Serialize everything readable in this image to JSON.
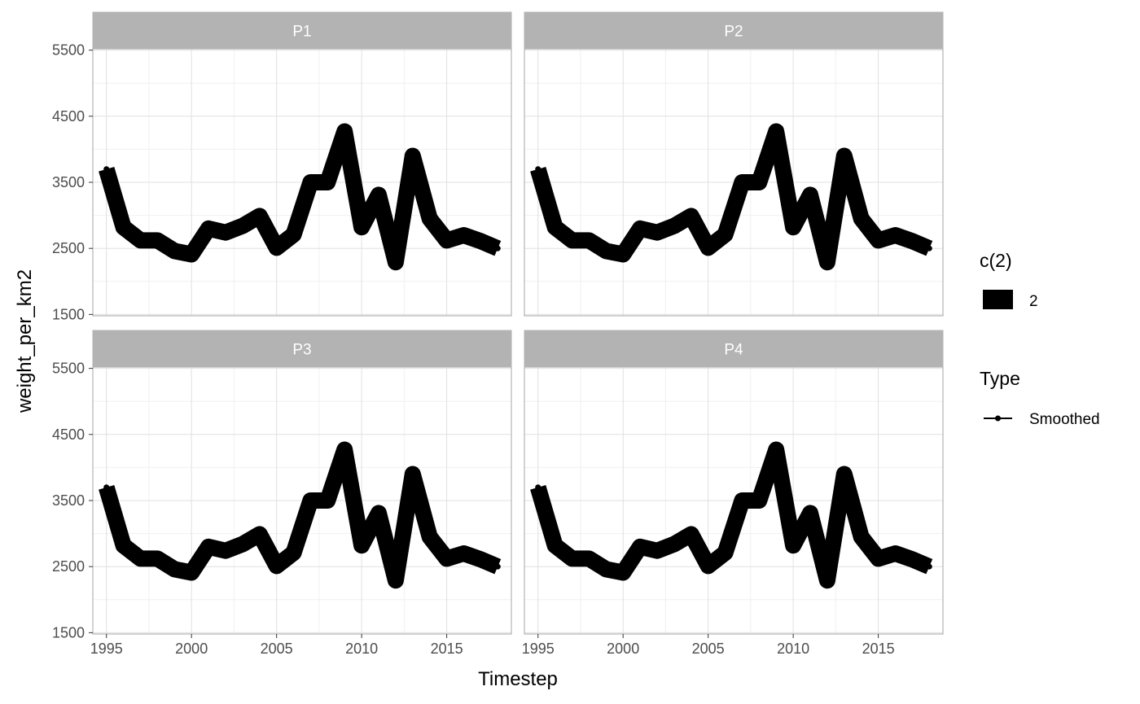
{
  "chart_data": {
    "type": "line",
    "facets": [
      "P1",
      "P2",
      "P3",
      "P4"
    ],
    "xlabel": "Timestep",
    "ylabel": "weight_per_km2",
    "xlim": [
      1994.2,
      2018.8
    ],
    "ylim": [
      1480,
      5520
    ],
    "x_ticks": [
      1995,
      2000,
      2005,
      2010,
      2015
    ],
    "y_ticks": [
      1500,
      2500,
      3500,
      4500,
      5500
    ],
    "grid": true,
    "legend_position": "right",
    "series": [
      {
        "x": [
          1995,
          1996,
          1997,
          1998,
          1999,
          2000,
          2001,
          2002,
          2003,
          2004,
          2005,
          2006,
          2007,
          2008,
          2009,
          2010,
          2011,
          2012,
          2013,
          2014,
          2015,
          2016,
          2017,
          2018
        ],
        "values": [
          3700,
          2820,
          2620,
          2620,
          2460,
          2410,
          2800,
          2740,
          2840,
          2990,
          2510,
          2710,
          3500,
          3500,
          4270,
          2820,
          3310,
          2290,
          3900,
          2950,
          2620,
          2700,
          2610,
          2500
        ]
      }
    ],
    "legends": [
      {
        "title": "c(2)",
        "key": "filled-square",
        "label": "2"
      },
      {
        "title": "Type",
        "key": "line-point",
        "label": "Smoothed"
      }
    ],
    "colors": {
      "line": "#000000",
      "strip_fill": "#b3b3b3",
      "panel_border": "#b3b3b3",
      "grid_major": "#e0e0e0",
      "grid_minor": "#f0f0f0"
    }
  }
}
